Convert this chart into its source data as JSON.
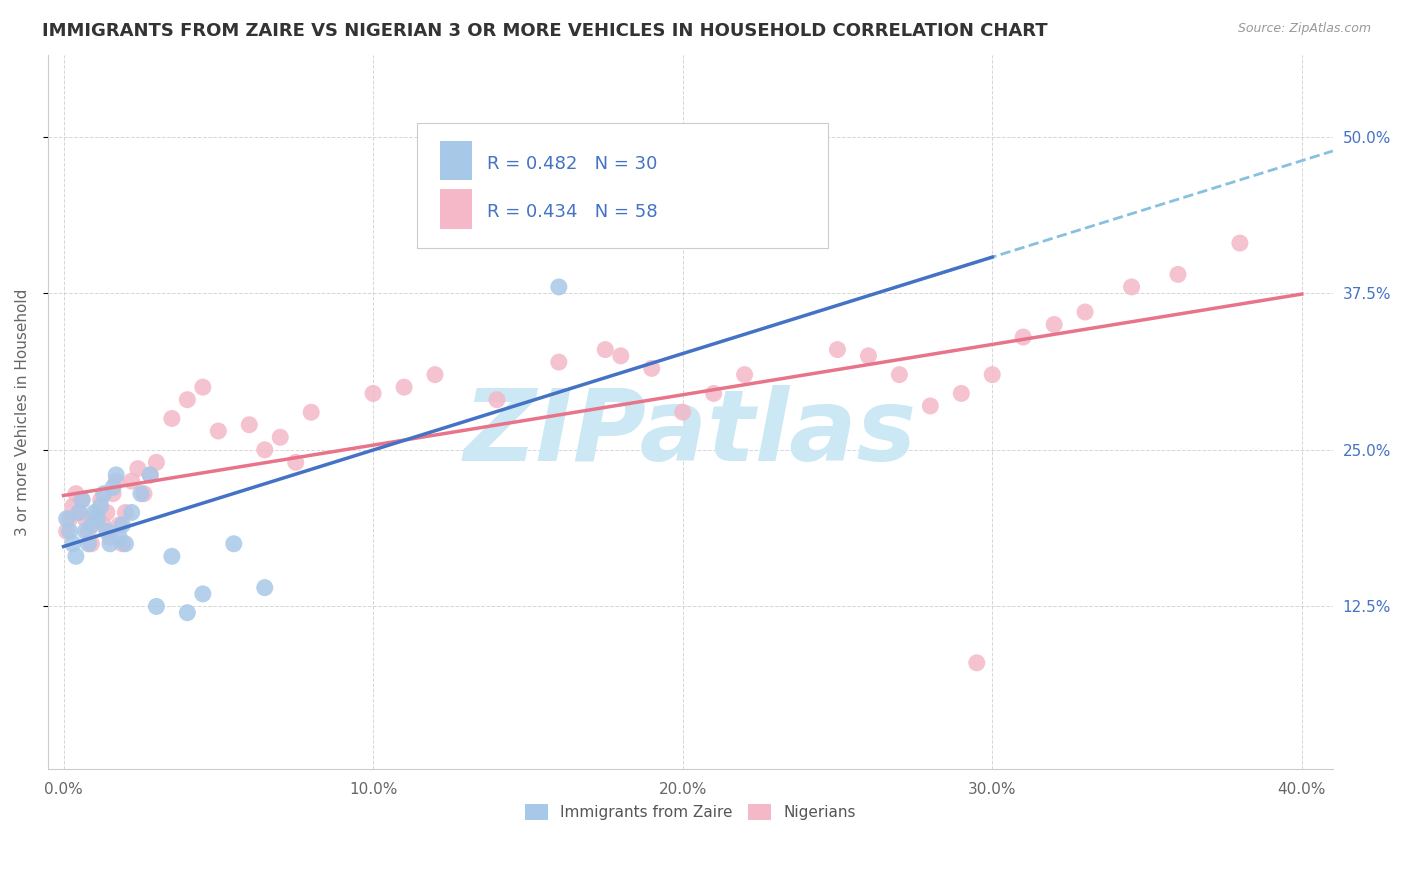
{
  "title": "IMMIGRANTS FROM ZAIRE VS NIGERIAN 3 OR MORE VEHICLES IN HOUSEHOLD CORRELATION CHART",
  "source_text": "Source: ZipAtlas.com",
  "ylabel": "3 or more Vehicles in Household",
  "xlim": [
    -0.005,
    0.41
  ],
  "ylim": [
    -0.005,
    0.565
  ],
  "xtick_labels": [
    "0.0%",
    "10.0%",
    "20.0%",
    "30.0%",
    "40.0%"
  ],
  "xtick_vals": [
    0.0,
    0.1,
    0.2,
    0.3,
    0.4
  ],
  "ytick_labels": [
    "12.5%",
    "25.0%",
    "37.5%",
    "50.0%"
  ],
  "ytick_vals": [
    0.125,
    0.25,
    0.375,
    0.5
  ],
  "legend_labels_bottom": [
    "Immigrants from Zaire",
    "Nigerians"
  ],
  "zaire_color": "#a8c8e8",
  "zaire_edge_color": "#6baed6",
  "nigerian_color": "#f4b8c8",
  "nigerian_edge_color": "#e8748a",
  "zaire_line_color": "#4472c4",
  "nigerian_line_color": "#e8748a",
  "trend_dashed_color": "#88c0e0",
  "background_color": "#ffffff",
  "grid_color": "#cccccc",
  "watermark_text": "ZIPatlas",
  "watermark_color": "#cce8f4",
  "title_fontsize": 13,
  "axis_label_fontsize": 11,
  "tick_fontsize": 11,
  "legend_fontsize": 13,
  "zaire_scatter_x": [
    0.001,
    0.002,
    0.003,
    0.004,
    0.005,
    0.006,
    0.007,
    0.008,
    0.009,
    0.01,
    0.011,
    0.012,
    0.013,
    0.014,
    0.015,
    0.016,
    0.017,
    0.018,
    0.019,
    0.02,
    0.022,
    0.025,
    0.028,
    0.03,
    0.035,
    0.04,
    0.045,
    0.055,
    0.065,
    0.16
  ],
  "zaire_scatter_y": [
    0.195,
    0.185,
    0.175,
    0.165,
    0.2,
    0.21,
    0.185,
    0.175,
    0.19,
    0.2,
    0.195,
    0.205,
    0.215,
    0.185,
    0.175,
    0.22,
    0.23,
    0.18,
    0.19,
    0.175,
    0.2,
    0.215,
    0.23,
    0.125,
    0.165,
    0.12,
    0.135,
    0.175,
    0.14,
    0.38
  ],
  "nigerian_scatter_x": [
    0.001,
    0.002,
    0.003,
    0.004,
    0.005,
    0.006,
    0.007,
    0.008,
    0.009,
    0.01,
    0.011,
    0.012,
    0.013,
    0.014,
    0.015,
    0.016,
    0.017,
    0.018,
    0.019,
    0.02,
    0.022,
    0.024,
    0.026,
    0.028,
    0.03,
    0.035,
    0.04,
    0.045,
    0.05,
    0.06,
    0.065,
    0.07,
    0.075,
    0.08,
    0.1,
    0.11,
    0.12,
    0.14,
    0.16,
    0.175,
    0.18,
    0.19,
    0.2,
    0.21,
    0.22,
    0.25,
    0.26,
    0.27,
    0.28,
    0.29,
    0.295,
    0.3,
    0.31,
    0.32,
    0.33,
    0.345,
    0.36,
    0.38
  ],
  "nigerian_scatter_y": [
    0.185,
    0.195,
    0.205,
    0.215,
    0.2,
    0.21,
    0.195,
    0.185,
    0.175,
    0.195,
    0.2,
    0.21,
    0.19,
    0.2,
    0.18,
    0.215,
    0.225,
    0.19,
    0.175,
    0.2,
    0.225,
    0.235,
    0.215,
    0.23,
    0.24,
    0.275,
    0.29,
    0.3,
    0.265,
    0.27,
    0.25,
    0.26,
    0.24,
    0.28,
    0.295,
    0.3,
    0.31,
    0.29,
    0.32,
    0.33,
    0.325,
    0.315,
    0.28,
    0.295,
    0.31,
    0.33,
    0.325,
    0.31,
    0.285,
    0.295,
    0.08,
    0.31,
    0.34,
    0.35,
    0.36,
    0.38,
    0.39,
    0.415
  ]
}
